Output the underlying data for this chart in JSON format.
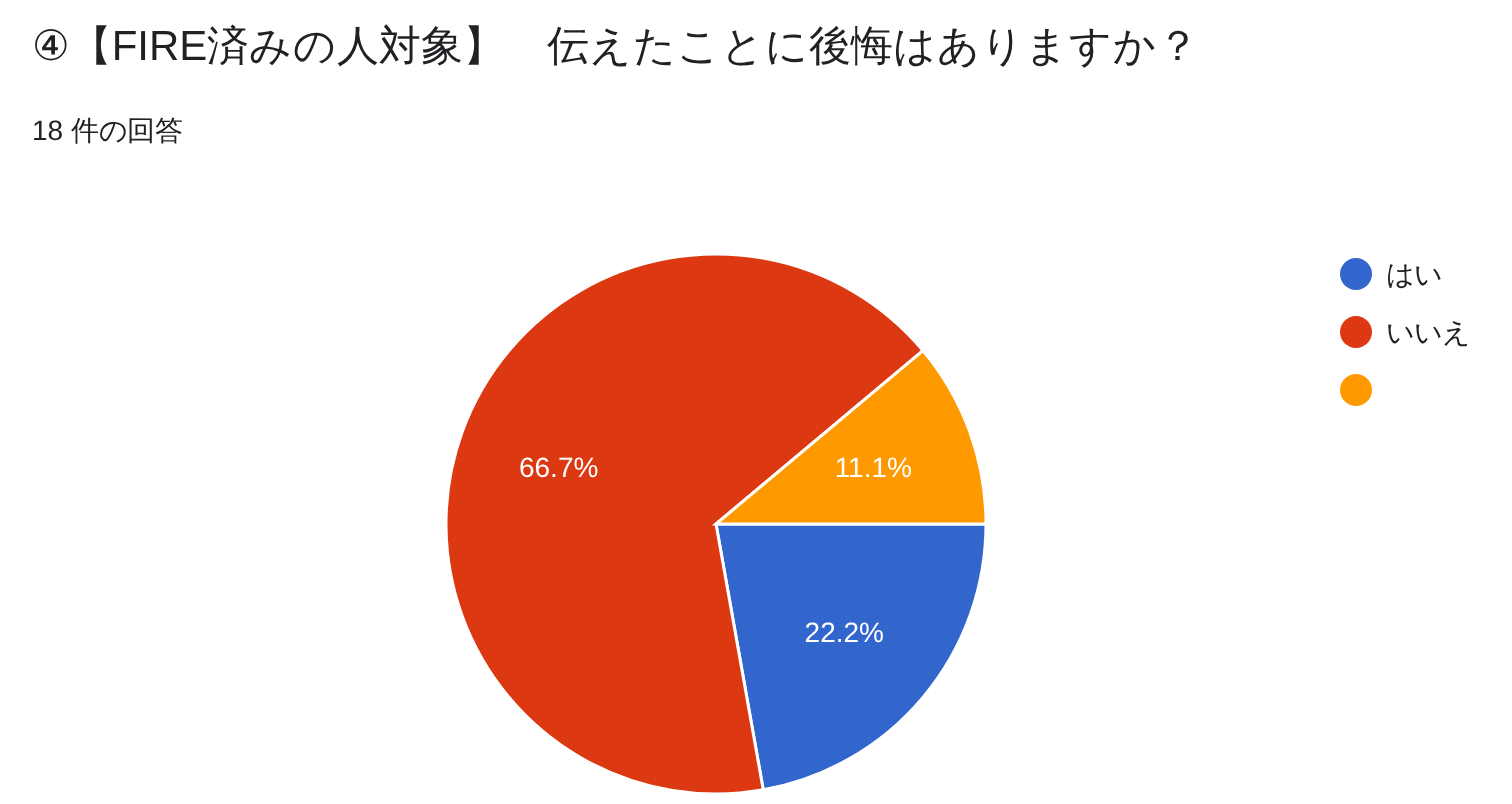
{
  "chart_data": {
    "type": "pie",
    "title": "④【FIRE済みの人対象】　伝えたことに後悔はありますか？",
    "subtitle": "18 件の回答",
    "categories": [
      "はい",
      "いいえ",
      null
    ],
    "values": [
      22.2,
      66.7,
      11.1
    ],
    "colors": [
      "#3366cc",
      "#dc3912",
      "#ff9900"
    ],
    "value_labels": [
      "22.2%",
      "66.7%",
      "11.1%"
    ],
    "legend": "top right"
  }
}
